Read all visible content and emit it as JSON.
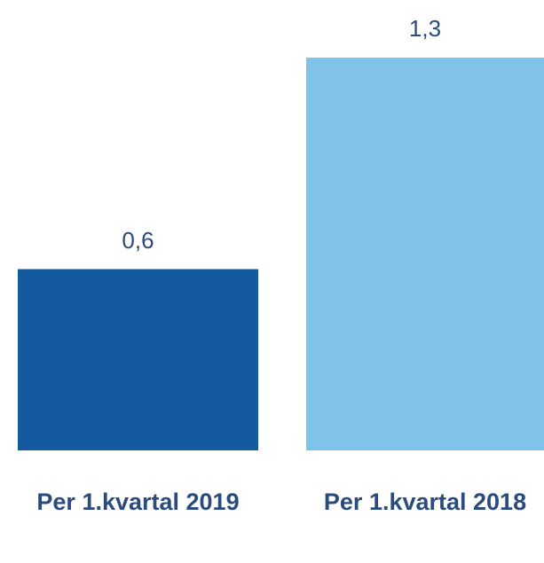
{
  "chart_data": {
    "type": "bar",
    "categories": [
      "Per 1.kvartal 2019",
      "Per 1.kvartal 2018"
    ],
    "values": [
      0.6,
      1.3
    ],
    "value_labels": [
      "0,6",
      "1,3"
    ],
    "colors": [
      "#135a9e",
      "#7fc4e8"
    ]
  }
}
